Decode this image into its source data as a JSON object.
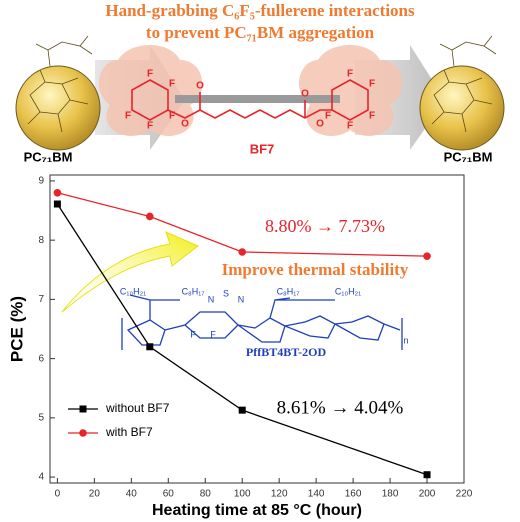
{
  "graphic": {
    "title_lines": [
      "Hand-grabbing C₆F₅-fullerene interactions",
      "to prevent PC₇₁BM aggregation"
    ],
    "fullerene_left": "PC₇₁BM",
    "fullerene_right": "PC₇₁BM",
    "molecule": "BF7",
    "molecule_atoms": [
      "F",
      "F",
      "F",
      "F",
      "F",
      "F",
      "F",
      "F",
      "F",
      "F",
      "O",
      "O",
      "O",
      "O"
    ],
    "polymer_name": "PffBT4BT-2OD",
    "polymer_atoms": [
      "C₁₀H₂₁",
      "C₈H₁₇",
      "C₈H₁₇",
      "C₁₀H₂₁",
      "N",
      "S",
      "N",
      "F",
      "F",
      "n"
    ]
  },
  "chart_data": {
    "type": "line",
    "x": [
      0,
      50,
      100,
      200
    ],
    "series": [
      {
        "name": "without BF7",
        "color": "#000000",
        "marker": "square",
        "values": [
          8.61,
          6.2,
          5.13,
          4.04
        ]
      },
      {
        "name": "with BF7",
        "color": "#e8232a",
        "marker": "circle",
        "values": [
          8.8,
          8.4,
          7.8,
          7.73
        ]
      }
    ],
    "xlabel": "Heating time at 85 °C (hour)",
    "ylabel": "PCE (%)",
    "xlim": [
      -4,
      220
    ],
    "xticks": [
      0,
      20,
      40,
      60,
      80,
      100,
      120,
      140,
      160,
      180,
      200,
      220
    ],
    "ylim": [
      3.9,
      9.1
    ],
    "yticks": [
      4,
      5,
      6,
      7,
      8,
      9
    ],
    "annotations": [
      "8.80% → 7.73%",
      "Improve thermal stability",
      "8.61% → 4.04%"
    ],
    "legend": "lower left"
  }
}
